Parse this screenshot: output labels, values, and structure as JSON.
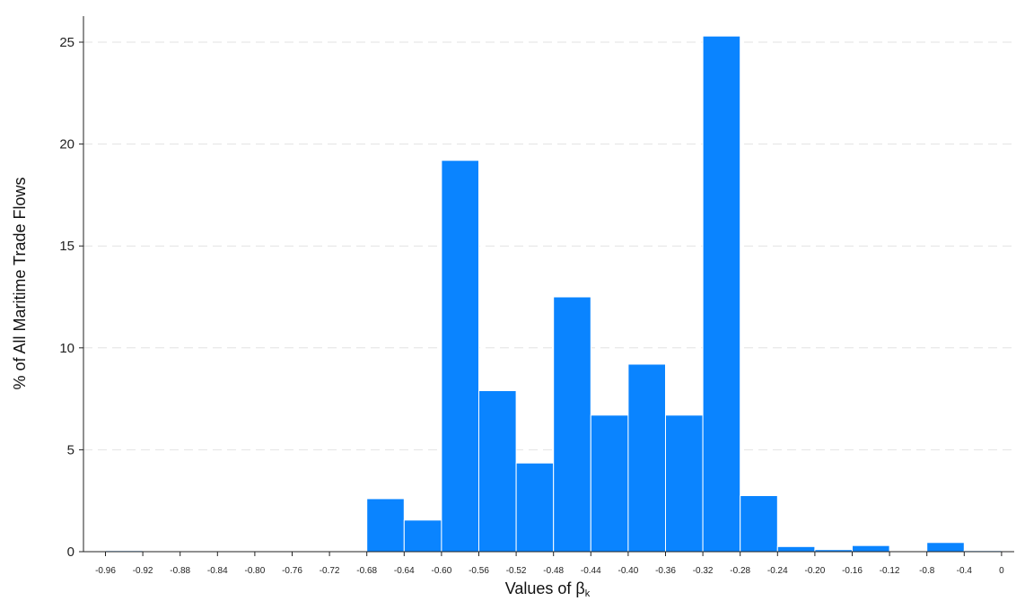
{
  "chart_data": {
    "type": "bar",
    "title": "",
    "xlabel": "Values of β",
    "xlabel_subscript": "k",
    "ylabel": "% of All Maritime Trade Flows",
    "ylim": [
      0,
      26
    ],
    "yticks": [
      0,
      5,
      10,
      15,
      20,
      25
    ],
    "grid": "horizontal dashed",
    "bar_color": "#0a84ff",
    "x_tick_labels": [
      "-0.96",
      "-0.92",
      "-0.88",
      "-0.84",
      "-0.80",
      "-0.76",
      "-0.72",
      "-0.68",
      "-0.64",
      "-0.60",
      "-0.56",
      "-0.52",
      "-0.48",
      "-0.44",
      "-0.40",
      "-0.36",
      "-0.32",
      "-0.28",
      "-0.24",
      "-0.20",
      "-0.16",
      "-0.12",
      "-0.8",
      "-0.4",
      "0"
    ],
    "values": [
      0.05,
      0,
      0,
      0,
      0,
      0,
      0,
      2.6,
      1.55,
      19.2,
      7.9,
      4.35,
      12.5,
      6.7,
      9.2,
      6.7,
      25.3,
      2.75,
      0.25,
      0.1,
      0.3,
      0,
      0.45,
      0.05
    ]
  }
}
